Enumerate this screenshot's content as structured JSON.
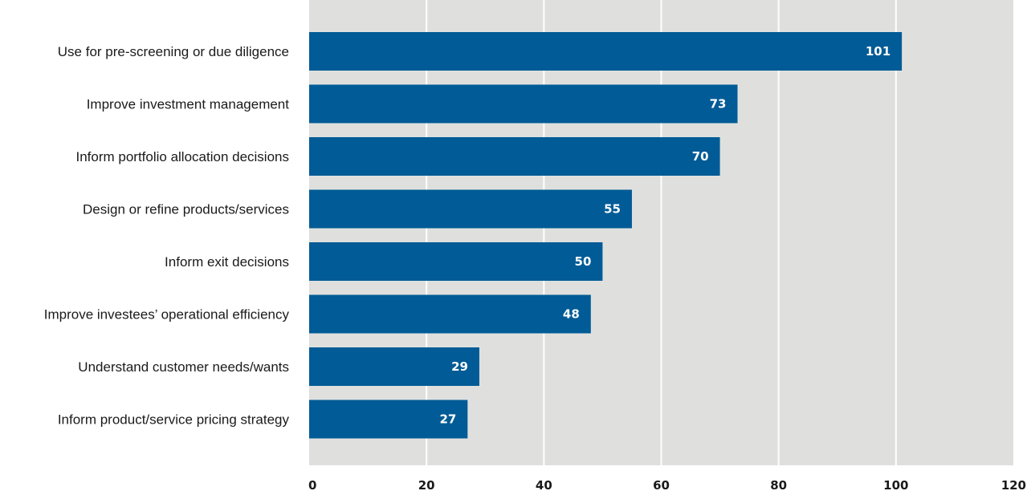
{
  "chart_data": {
    "type": "bar",
    "orientation": "horizontal",
    "categories": [
      "Use for pre-screening or due diligence",
      "Improve investment management",
      "Inform portfolio allocation decisions",
      "Design or refine products/services",
      "Inform exit decisions",
      "Improve investees’ operational efficiency",
      "Understand customer needs/wants",
      "Inform product/service pricing strategy"
    ],
    "values": [
      101,
      73,
      70,
      55,
      50,
      48,
      29,
      27
    ],
    "data_labels": [
      "101",
      "73",
      "70",
      "55",
      "50",
      "48",
      "29",
      "27"
    ],
    "xlim": [
      0,
      120
    ],
    "xticks": [
      "0",
      "20",
      "40",
      "60",
      "80",
      "100",
      "120"
    ],
    "grid": "vertical",
    "legend": "none",
    "colors": {
      "bar": "#005b96",
      "plot_background": "#dfe0de",
      "grid": "#ffffff",
      "value_label": "#ffffff",
      "text": "#1a1a1a"
    }
  }
}
